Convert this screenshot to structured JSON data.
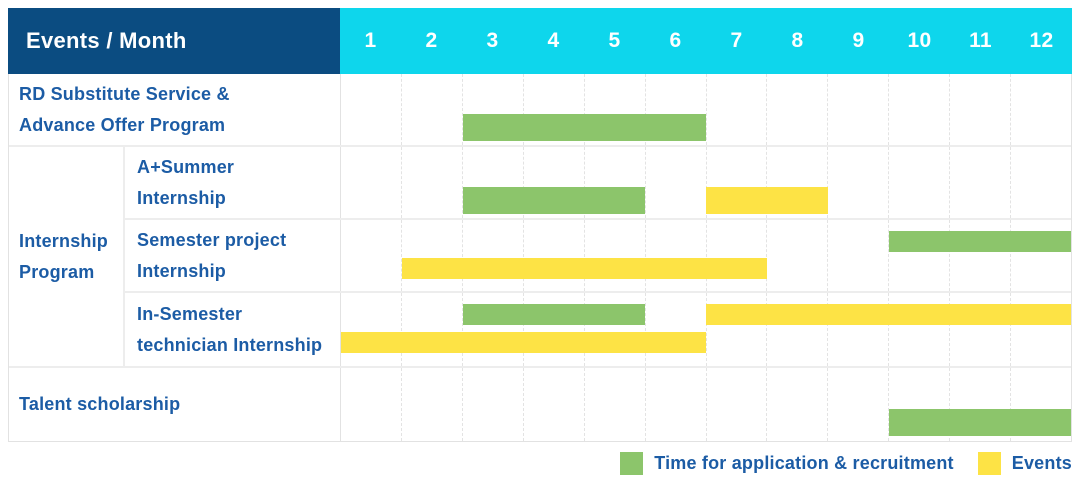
{
  "chart_data": {
    "type": "gantt",
    "title": "Events / Month",
    "x_axis": {
      "label": "Month",
      "ticks": [
        "1",
        "2",
        "3",
        "4",
        "5",
        "6",
        "7",
        "8",
        "9",
        "10",
        "11",
        "12"
      ],
      "range": [
        1,
        12
      ]
    },
    "months_total": 12,
    "grid": "dashed-vertical-month-lines",
    "legend_position": "bottom-right",
    "legend": [
      {
        "key": "recruitment",
        "label": "Time for application & recruitment",
        "color": "#8CC56B"
      },
      {
        "key": "event",
        "label": "Events",
        "color": "#FDE345"
      }
    ],
    "colors": {
      "header_bg": "#0B4C81",
      "months_bg": "#0ED6EC",
      "header_text": "#ffffff",
      "label_text": "#1C5CA5",
      "recruitment_bar": "#8CC56B",
      "event_bar": "#FDE345",
      "row_border": "#ededed",
      "grid_line": "#e3e3e3"
    },
    "rows": [
      {
        "name": "rd-substitute-service",
        "kind": "full",
        "group": null,
        "label": "RD Substitute Service & Advance Offer Program",
        "label_lines": [
          "RD Substitute Service &",
          "Advance Offer Program"
        ],
        "bars": [
          {
            "series": "recruitment",
            "start_month": 3,
            "end_month": 6,
            "track": "single"
          }
        ]
      },
      {
        "name": "a-summer-internship",
        "kind": "sub",
        "group": "Internship Program",
        "label": "A+Summer Internship",
        "label_lines": [
          "A+Summer",
          "Internship"
        ],
        "bars": [
          {
            "series": "recruitment",
            "start_month": 3,
            "end_month": 5,
            "track": "single"
          },
          {
            "series": "event",
            "start_month": 7,
            "end_month": 8,
            "track": "single"
          }
        ]
      },
      {
        "name": "semester-project-internship",
        "kind": "sub",
        "group": "Internship Program",
        "label": "Semester project Internship",
        "label_lines": [
          "Semester project",
          "Internship"
        ],
        "bars": [
          {
            "series": "recruitment",
            "start_month": 10,
            "end_month": 12,
            "track": "upper"
          },
          {
            "series": "event",
            "start_month": 2,
            "end_month": 7,
            "track": "lower"
          }
        ]
      },
      {
        "name": "in-semester-technician-internship",
        "kind": "sub",
        "group": "Internship Program",
        "label": "In-Semester technician Internship",
        "label_lines": [
          "In-Semester",
          "technician Internship"
        ],
        "bars": [
          {
            "series": "recruitment",
            "start_month": 3,
            "end_month": 5,
            "track": "upper"
          },
          {
            "series": "event",
            "start_month": 7,
            "end_month": 12,
            "track": "upper"
          },
          {
            "series": "event",
            "start_month": 1,
            "end_month": 6,
            "track": "lower"
          }
        ]
      },
      {
        "name": "talent-scholarship",
        "kind": "full",
        "group": null,
        "label": "Talent scholarship",
        "label_lines": [
          "Talent scholarship"
        ],
        "bars": [
          {
            "series": "recruitment",
            "start_month": 10,
            "end_month": 12,
            "track": "single"
          }
        ]
      }
    ],
    "group_labels": {
      "Internship Program": {
        "name": "internship-program-group",
        "label_lines": [
          "Internship",
          "Program"
        ]
      }
    }
  }
}
